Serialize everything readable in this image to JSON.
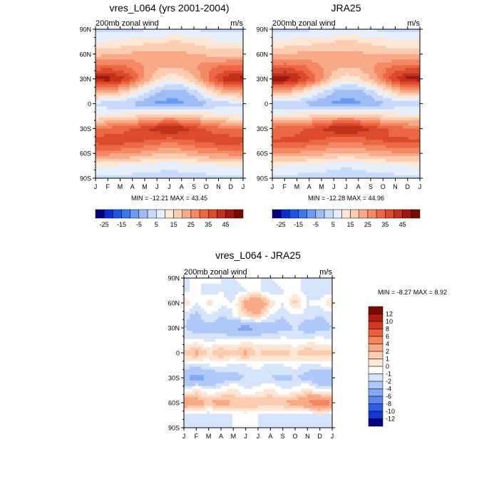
{
  "chart_data": [
    {
      "type": "heatmap",
      "title": "vres_L064 (yrs 2001-2004)",
      "left_label": "200mb zonal wind",
      "right_label": "m/s",
      "x_ticks": [
        "J",
        "F",
        "M",
        "A",
        "M",
        "J",
        "J",
        "A",
        "S",
        "O",
        "N",
        "D",
        "J"
      ],
      "y_ticks": [
        "90N",
        "60N",
        "30N",
        "0",
        "30S",
        "60S",
        "90S"
      ],
      "y_range": [
        90,
        -90
      ],
      "stats": "MIN = -12.21 MAX =  43.45",
      "colorbar": {
        "orientation": "horizontal",
        "labels": [
          "-25",
          "-15",
          "-5",
          "5",
          "15",
          "25",
          "35",
          "45"
        ],
        "colors": [
          "#000080",
          "#0c2ecd",
          "#1d55e6",
          "#3a78ee",
          "#6a9bf0",
          "#9ebcf5",
          "#c8d9f9",
          "#e6effb",
          "#fde6d4",
          "#fcccb0",
          "#f8aa88",
          "#f48862",
          "#ec6845",
          "#db4a2c",
          "#c2311c",
          "#9e1a0e",
          "#7a0a00"
        ]
      },
      "rows": [
        {
          "lat": "90N",
          "values": [
            -1,
            -1,
            -1,
            -1,
            -1,
            -1,
            -1,
            -1,
            -1,
            -1,
            -1,
            -1,
            -1
          ]
        },
        {
          "lat": "75N",
          "values": [
            4,
            5,
            6,
            7,
            8,
            9,
            10,
            10,
            9,
            7,
            5,
            4,
            4
          ]
        },
        {
          "lat": "60N",
          "values": [
            13,
            14,
            15,
            16,
            17,
            17,
            17,
            16,
            15,
            14,
            13,
            13,
            13
          ]
        },
        {
          "lat": "45N",
          "values": [
            26,
            27,
            26,
            24,
            20,
            17,
            15,
            16,
            19,
            23,
            25,
            26,
            26
          ]
        },
        {
          "lat": "30N",
          "values": [
            42,
            43,
            38,
            30,
            20,
            10,
            6,
            8,
            14,
            24,
            34,
            41,
            42
          ]
        },
        {
          "lat": "15N",
          "values": [
            20,
            18,
            14,
            8,
            2,
            -4,
            -8,
            -7,
            -2,
            6,
            14,
            19,
            20
          ]
        },
        {
          "lat": "0",
          "values": [
            -2,
            -3,
            -4,
            -6,
            -9,
            -11,
            -12,
            -11,
            -9,
            -6,
            -3,
            -2,
            -2
          ]
        },
        {
          "lat": "15S",
          "values": [
            5,
            6,
            7,
            9,
            12,
            14,
            15,
            14,
            12,
            9,
            7,
            5,
            5
          ]
        },
        {
          "lat": "30S",
          "values": [
            26,
            27,
            28,
            30,
            34,
            38,
            40,
            38,
            34,
            30,
            27,
            26,
            26
          ]
        },
        {
          "lat": "45S",
          "values": [
            32,
            33,
            33,
            32,
            30,
            28,
            27,
            28,
            30,
            32,
            33,
            33,
            32
          ]
        },
        {
          "lat": "60S",
          "values": [
            22,
            22,
            21,
            20,
            18,
            16,
            15,
            16,
            18,
            20,
            21,
            22,
            22
          ]
        },
        {
          "lat": "75S",
          "values": [
            6,
            6,
            5,
            4,
            3,
            2,
            1,
            2,
            3,
            4,
            5,
            6,
            6
          ]
        },
        {
          "lat": "90S",
          "values": [
            -2,
            -2,
            -2,
            -2,
            -2,
            -2,
            -2,
            -2,
            -2,
            -2,
            -2,
            -2,
            -2
          ]
        }
      ]
    },
    {
      "type": "heatmap",
      "title": "JRA25",
      "left_label": "200mb zonal wind",
      "right_label": "m/s",
      "x_ticks": [
        "J",
        "F",
        "M",
        "A",
        "M",
        "J",
        "J",
        "A",
        "S",
        "O",
        "N",
        "D",
        "J"
      ],
      "y_ticks": [
        "90N",
        "60N",
        "30N",
        "0",
        "30S",
        "60S",
        "90S"
      ],
      "y_range": [
        90,
        -90
      ],
      "stats": "MIN = -12.28 MAX =  44.96",
      "colorbar": {
        "orientation": "horizontal",
        "labels": [
          "-25",
          "-15",
          "-5",
          "5",
          "15",
          "25",
          "35",
          "45"
        ],
        "colors": [
          "#000080",
          "#0c2ecd",
          "#1d55e6",
          "#3a78ee",
          "#6a9bf0",
          "#9ebcf5",
          "#c8d9f9",
          "#e6effb",
          "#fde6d4",
          "#fcccb0",
          "#f8aa88",
          "#f48862",
          "#ec6845",
          "#db4a2c",
          "#c2311c",
          "#9e1a0e",
          "#7a0a00"
        ]
      },
      "rows": [
        {
          "lat": "90N",
          "values": [
            -1,
            -1,
            -1,
            -1,
            -1,
            -1,
            -1,
            -1,
            -1,
            -1,
            -1,
            -1,
            -1
          ]
        },
        {
          "lat": "75N",
          "values": [
            5,
            6,
            7,
            8,
            9,
            10,
            10,
            10,
            9,
            7,
            6,
            5,
            5
          ]
        },
        {
          "lat": "60N",
          "values": [
            14,
            15,
            16,
            16,
            17,
            17,
            17,
            16,
            15,
            14,
            14,
            14,
            14
          ]
        },
        {
          "lat": "45N",
          "values": [
            27,
            28,
            27,
            24,
            20,
            17,
            15,
            16,
            19,
            23,
            26,
            27,
            27
          ]
        },
        {
          "lat": "30N",
          "values": [
            43,
            44,
            39,
            31,
            21,
            11,
            7,
            9,
            15,
            25,
            35,
            42,
            43
          ]
        },
        {
          "lat": "15N",
          "values": [
            19,
            17,
            13,
            7,
            1,
            -5,
            -8,
            -7,
            -2,
            5,
            13,
            18,
            19
          ]
        },
        {
          "lat": "0",
          "values": [
            -3,
            -4,
            -5,
            -7,
            -9,
            -11,
            -12,
            -11,
            -9,
            -6,
            -4,
            -3,
            -3
          ]
        },
        {
          "lat": "15S",
          "values": [
            6,
            7,
            8,
            10,
            12,
            14,
            15,
            14,
            12,
            10,
            8,
            6,
            6
          ]
        },
        {
          "lat": "30S",
          "values": [
            27,
            28,
            29,
            31,
            35,
            39,
            41,
            39,
            35,
            31,
            28,
            27,
            27
          ]
        },
        {
          "lat": "45S",
          "values": [
            30,
            31,
            31,
            30,
            29,
            27,
            26,
            27,
            29,
            30,
            31,
            31,
            30
          ]
        },
        {
          "lat": "60S",
          "values": [
            20,
            20,
            19,
            18,
            17,
            15,
            14,
            15,
            17,
            18,
            19,
            20,
            20
          ]
        },
        {
          "lat": "75S",
          "values": [
            5,
            5,
            4,
            3,
            2,
            1,
            0,
            1,
            2,
            3,
            4,
            5,
            5
          ]
        },
        {
          "lat": "90S",
          "values": [
            -2,
            -2,
            -2,
            -2,
            -2,
            -2,
            -2,
            -2,
            -2,
            -2,
            -2,
            -2,
            -2
          ]
        }
      ]
    },
    {
      "type": "heatmap",
      "title": "vres_L064 - JRA25",
      "left_label": "200mb zonal wind",
      "right_label": "m/s",
      "x_ticks": [
        "J",
        "F",
        "M",
        "A",
        "M",
        "J",
        "J",
        "A",
        "S",
        "O",
        "N",
        "D",
        "J"
      ],
      "y_ticks": [
        "90N",
        "60N",
        "30N",
        "0",
        "30S",
        "60S",
        "90S"
      ],
      "y_range": [
        90,
        -90
      ],
      "stats": "MIN = -8.27 MAX =  8.92",
      "colorbar": {
        "orientation": "vertical",
        "labels": [
          "12",
          "10",
          "8",
          "6",
          "4",
          "2",
          "1",
          "0",
          "-1",
          "-2",
          "-4",
          "-6",
          "-8",
          "-10",
          "-12"
        ],
        "colors": [
          "#7a0a00",
          "#b01c10",
          "#d43a22",
          "#ec5f38",
          "#f4855d",
          "#f8a987",
          "#fcccb0",
          "#fde6d4",
          "#ffffff",
          "#d6e4fb",
          "#afc8f7",
          "#86a8f2",
          "#5a86ec",
          "#2f5ee5",
          "#1238d2",
          "#000080"
        ]
      },
      "rows": [
        {
          "lat": "90N",
          "values": [
            -1,
            -1,
            -0.5,
            -1,
            -1,
            -0.5,
            -1,
            -1,
            -0.5,
            -1,
            -1,
            -1,
            -1
          ]
        },
        {
          "lat": "75N",
          "values": [
            -1.5,
            -0.5,
            -2,
            -1,
            -2,
            -1,
            -0.5,
            -2,
            -1,
            -0.5,
            -1.5,
            -2,
            -1.5
          ]
        },
        {
          "lat": "60N",
          "values": [
            1,
            -1,
            0.5,
            -0.5,
            -1,
            3,
            4,
            1,
            -1,
            1.5,
            -1,
            -0.5,
            1
          ]
        },
        {
          "lat": "45N",
          "values": [
            -1.5,
            -2.5,
            -1,
            -2,
            -1,
            1,
            2,
            -1,
            -2,
            -1,
            -1.5,
            -2,
            -1.5
          ]
        },
        {
          "lat": "30N",
          "values": [
            -2,
            -3,
            -2.5,
            -3,
            -4,
            -5,
            -4,
            -3,
            -2.5,
            -2,
            -3,
            -2.5,
            -2
          ]
        },
        {
          "lat": "15N",
          "values": [
            -1,
            -0.5,
            -1.5,
            -0.5,
            -1,
            -0.5,
            -0.5,
            -1,
            -0.5,
            -1,
            -0.5,
            -0.5,
            -1
          ]
        },
        {
          "lat": "0",
          "values": [
            1.5,
            2.5,
            1,
            2,
            1.5,
            2.5,
            1,
            2,
            1.5,
            1,
            2,
            1.5,
            1.5
          ]
        },
        {
          "lat": "15S",
          "values": [
            -1,
            -1.5,
            -1,
            -0.5,
            -1.5,
            -1,
            -0.5,
            -1.5,
            -1,
            -0.5,
            -1.5,
            -1,
            -1
          ]
        },
        {
          "lat": "30S",
          "values": [
            -4,
            -5,
            -4,
            -3,
            -2.5,
            -2,
            -2,
            -2,
            -2.5,
            -2,
            -2.5,
            -4,
            -4
          ]
        },
        {
          "lat": "45S",
          "values": [
            -1,
            0.5,
            -1,
            -0.5,
            0.5,
            -1,
            -0.5,
            0.5,
            -1,
            -0.5,
            0.5,
            -1,
            -1
          ]
        },
        {
          "lat": "60S",
          "values": [
            4,
            3,
            2,
            3,
            2,
            2,
            2,
            2,
            2,
            3,
            4,
            6,
            4
          ]
        },
        {
          "lat": "75S",
          "values": [
            -1.5,
            -1,
            -2,
            -1.5,
            -1,
            -0.5,
            -1,
            -1.5,
            -1,
            -2,
            -1.5,
            -1,
            -1.5
          ]
        },
        {
          "lat": "90S",
          "values": [
            -1,
            -1,
            -1,
            -1,
            -1,
            -1,
            -1,
            -1,
            -1,
            -1,
            -1,
            -1,
            -1
          ]
        }
      ]
    }
  ]
}
